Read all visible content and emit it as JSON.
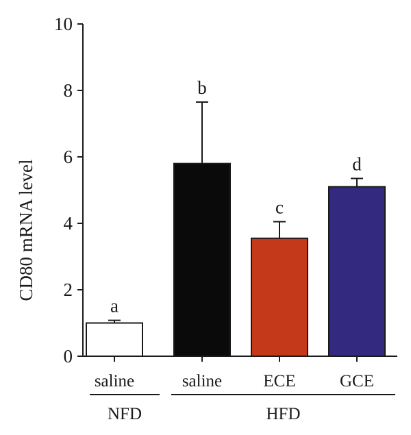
{
  "chart_data": {
    "type": "bar",
    "ylabel": "CD80 mRNA level",
    "ylim": [
      0,
      10
    ],
    "yticks": [
      "0",
      "2",
      "4",
      "6",
      "8",
      "10"
    ],
    "categories": [
      "saline",
      "saline",
      "ECE",
      "GCE"
    ],
    "groups": [
      {
        "label": "NFD",
        "members": [
          0
        ]
      },
      {
        "label": "HFD",
        "members": [
          1,
          2,
          3
        ]
      }
    ],
    "values": [
      1.0,
      5.8,
      3.55,
      5.1
    ],
    "errors": [
      0.08,
      1.85,
      0.5,
      0.25
    ],
    "significance": [
      "a",
      "b",
      "c",
      "d"
    ],
    "colors": [
      "#ffffff",
      "#0a0a0a",
      "#c5391b",
      "#332a7f"
    ],
    "grid": false
  }
}
